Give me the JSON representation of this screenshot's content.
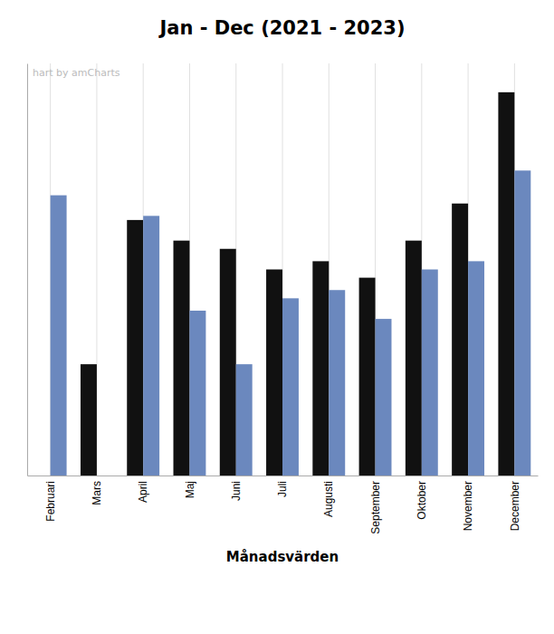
{
  "chart_data": {
    "type": "bar",
    "title": "Jan - Dec (2021 - 2023)",
    "xlabel": "Månadsvärden",
    "annotations": [
      "hart by amCharts"
    ],
    "categories": [
      "Februari",
      "Mars",
      "April",
      "Maj",
      "Juni",
      "Juli",
      "Augusti",
      "September",
      "Oktober",
      "November",
      "December"
    ],
    "series": [
      {
        "color": "#111111",
        "values": [
          0,
          27,
          62,
          57,
          55,
          50,
          52,
          48,
          57,
          66,
          93
        ]
      },
      {
        "color": "#6b88be",
        "values": [
          68,
          0,
          63,
          40,
          27,
          43,
          45,
          38,
          50,
          52,
          74
        ]
      }
    ],
    "ylim": [
      0,
      100
    ],
    "yticks": [],
    "grid": true,
    "tick_labels": "x"
  }
}
